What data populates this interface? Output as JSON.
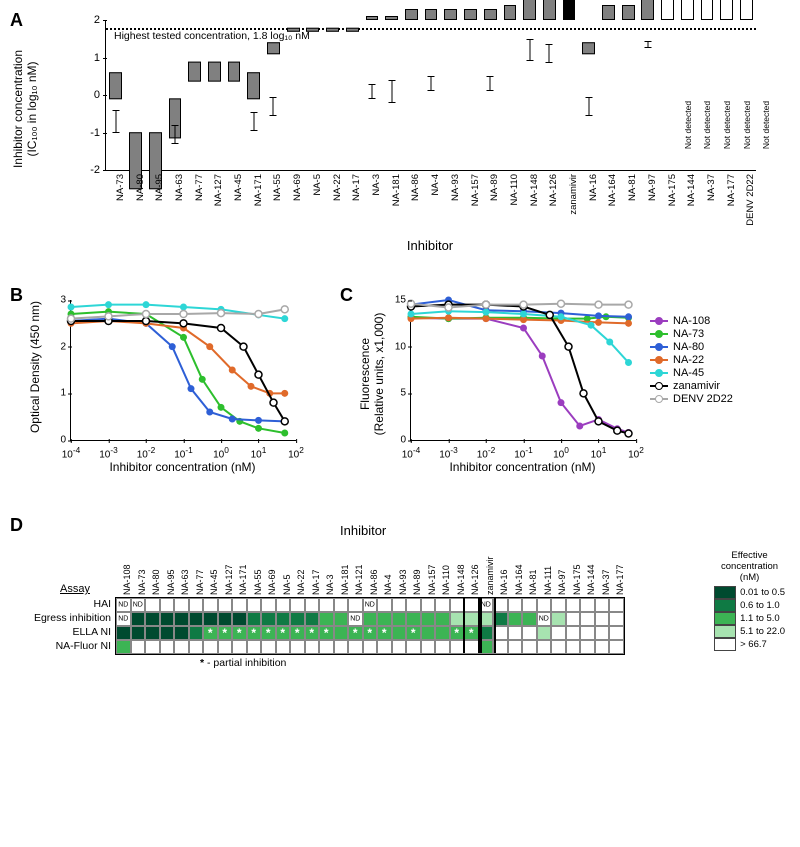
{
  "panelA": {
    "label": "A",
    "ylabel_line1": "Inhibitor concentration",
    "ylabel_line2": "(IC₁₀₀ in log₁₀ nM)",
    "xlabel": "Inhibitor",
    "annotation": "Highest tested concentration, 1.8 log₁₀ nM",
    "ylim": [
      -2,
      2
    ],
    "ytick_step": 1,
    "ht_line": 1.8,
    "not_detected_label": "Not detected",
    "bars": [
      {
        "name": "NA-73",
        "val": -0.7,
        "err": 0.3,
        "fill": "gray"
      },
      {
        "name": "NA-80",
        "val": -1.5,
        "err": 0,
        "fill": "gray"
      },
      {
        "name": "NA-95",
        "val": -1.5,
        "err": 0,
        "fill": "gray"
      },
      {
        "name": "NA-63",
        "val": -1.05,
        "err": 0.25,
        "fill": "gray"
      },
      {
        "name": "NA-77",
        "val": -0.55,
        "err": 0,
        "fill": "gray"
      },
      {
        "name": "NA-127",
        "val": -0.55,
        "err": 0,
        "fill": "gray"
      },
      {
        "name": "NA-45",
        "val": -0.55,
        "err": 0,
        "fill": "gray"
      },
      {
        "name": "NA-171",
        "val": -0.7,
        "err": 0.25,
        "fill": "gray"
      },
      {
        "name": "NA-55",
        "val": -0.3,
        "err": 0.25,
        "fill": "gray"
      },
      {
        "name": "NA-69",
        "val": -0.1,
        "err": 0,
        "fill": "gray"
      },
      {
        "name": "NA-5",
        "val": -0.1,
        "err": 0,
        "fill": "gray"
      },
      {
        "name": "NA-22",
        "val": -0.1,
        "err": 0,
        "fill": "gray"
      },
      {
        "name": "NA-17",
        "val": -0.1,
        "err": 0,
        "fill": "gray"
      },
      {
        "name": "NA-3",
        "val": 0.1,
        "err": 0.2,
        "fill": "gray"
      },
      {
        "name": "NA-181",
        "val": 0.1,
        "err": 0.3,
        "fill": "gray"
      },
      {
        "name": "NA-86",
        "val": 0.3,
        "err": 0,
        "fill": "gray"
      },
      {
        "name": "NA-4",
        "val": 0.3,
        "err": 0.2,
        "fill": "gray"
      },
      {
        "name": "NA-93",
        "val": 0.3,
        "err": 0,
        "fill": "gray"
      },
      {
        "name": "NA-157",
        "val": 0.3,
        "err": 0,
        "fill": "gray"
      },
      {
        "name": "NA-89",
        "val": 0.3,
        "err": 0.2,
        "fill": "gray"
      },
      {
        "name": "NA-110",
        "val": 0.4,
        "err": 0,
        "fill": "gray"
      },
      {
        "name": "NA-148",
        "val": 1.2,
        "err": 0.3,
        "fill": "gray"
      },
      {
        "name": "NA-126",
        "val": 1.1,
        "err": 0.25,
        "fill": "gray"
      },
      {
        "name": "zanamivir",
        "val": 0.85,
        "err": 0,
        "fill": "black"
      },
      {
        "name": "NA-16",
        "val": -0.3,
        "err": 0.25,
        "fill": "gray"
      },
      {
        "name": "NA-164",
        "val": 0.4,
        "err": 0,
        "fill": "gray"
      },
      {
        "name": "NA-81",
        "val": 0.4,
        "err": 0,
        "fill": "gray"
      },
      {
        "name": "NA-97",
        "val": 1.35,
        "err": 0.1,
        "fill": "gray"
      },
      {
        "name": "NA-175",
        "val": 1.8,
        "err": 0,
        "fill": "white",
        "nd": true
      },
      {
        "name": "NA-144",
        "val": 1.8,
        "err": 0,
        "fill": "white",
        "nd": true
      },
      {
        "name": "NA-37",
        "val": 1.8,
        "err": 0,
        "fill": "white",
        "nd": true
      },
      {
        "name": "NA-177",
        "val": 1.8,
        "err": 0,
        "fill": "white",
        "nd": true
      },
      {
        "name": "DENV 2D22",
        "val": 1.8,
        "err": 0,
        "fill": "white",
        "nd": true
      }
    ]
  },
  "panelB": {
    "label": "B",
    "ylabel": "Optical Density (450 nm)",
    "xlabel": "Inhibitor concentration (nM)",
    "ylim": [
      0,
      3
    ],
    "yticks": [
      0,
      1,
      2,
      3
    ],
    "xlim_log": [
      -4,
      2
    ],
    "xticks_log": [
      -4,
      -3,
      -2,
      -1,
      0,
      1,
      2
    ],
    "series": [
      {
        "name": "NA-73",
        "color": "#2dbf2d",
        "pts": [
          [
            -4,
            2.7
          ],
          [
            -3,
            2.75
          ],
          [
            -2,
            2.7
          ],
          [
            -1,
            2.2
          ],
          [
            -0.5,
            1.3
          ],
          [
            0,
            0.7
          ],
          [
            0.5,
            0.4
          ],
          [
            1,
            0.25
          ],
          [
            1.7,
            0.15
          ]
        ]
      },
      {
        "name": "NA-80",
        "color": "#2e5fd6",
        "pts": [
          [
            -4,
            2.55
          ],
          [
            -3,
            2.6
          ],
          [
            -2,
            2.5
          ],
          [
            -1.3,
            2.0
          ],
          [
            -0.8,
            1.1
          ],
          [
            -0.3,
            0.6
          ],
          [
            0.3,
            0.45
          ],
          [
            1,
            0.42
          ],
          [
            1.7,
            0.4
          ]
        ]
      },
      {
        "name": "NA-22",
        "color": "#e06a2a",
        "pts": [
          [
            -4,
            2.5
          ],
          [
            -3,
            2.55
          ],
          [
            -2,
            2.5
          ],
          [
            -1,
            2.4
          ],
          [
            -0.3,
            2.0
          ],
          [
            0.3,
            1.5
          ],
          [
            0.8,
            1.15
          ],
          [
            1.3,
            1.0
          ],
          [
            1.7,
            1.0
          ]
        ]
      },
      {
        "name": "NA-45",
        "color": "#2dd6d6",
        "pts": [
          [
            -4,
            2.85
          ],
          [
            -3,
            2.9
          ],
          [
            -2,
            2.9
          ],
          [
            -1,
            2.85
          ],
          [
            0,
            2.8
          ],
          [
            1,
            2.68
          ],
          [
            1.7,
            2.6
          ]
        ]
      },
      {
        "name": "zanamivir",
        "color": "#000000",
        "open": true,
        "pts": [
          [
            -4,
            2.55
          ],
          [
            -3,
            2.55
          ],
          [
            -2,
            2.55
          ],
          [
            -1,
            2.5
          ],
          [
            0,
            2.4
          ],
          [
            0.6,
            2.0
          ],
          [
            1,
            1.4
          ],
          [
            1.4,
            0.8
          ],
          [
            1.7,
            0.4
          ]
        ]
      },
      {
        "name": "DENV 2D22",
        "color": "#a8a8a8",
        "open": true,
        "pts": [
          [
            -4,
            2.6
          ],
          [
            -3,
            2.65
          ],
          [
            -2,
            2.7
          ],
          [
            -1,
            2.7
          ],
          [
            0,
            2.72
          ],
          [
            1,
            2.7
          ],
          [
            1.7,
            2.8
          ]
        ]
      }
    ]
  },
  "panelC": {
    "label": "C",
    "ylabel_line1": "Fluorescence",
    "ylabel_line2": "(Relative units, x1,000)",
    "xlabel": "Inhibitor concentration (nM)",
    "ylim": [
      0,
      15
    ],
    "yticks": [
      0,
      5,
      10,
      15
    ],
    "xlim_log": [
      -4,
      2
    ],
    "xticks_log": [
      -4,
      -3,
      -2,
      -1,
      0,
      1,
      2
    ],
    "series": [
      {
        "name": "NA-108",
        "color": "#9b3dbf",
        "pts": [
          [
            -4,
            13.1
          ],
          [
            -3,
            13
          ],
          [
            -2,
            13
          ],
          [
            -1,
            12
          ],
          [
            -0.5,
            9
          ],
          [
            0,
            4
          ],
          [
            0.5,
            1.5
          ],
          [
            1,
            2.2
          ],
          [
            1.5,
            1.2
          ],
          [
            1.8,
            0.8
          ]
        ]
      },
      {
        "name": "NA-73",
        "color": "#2dbf2d",
        "pts": [
          [
            -4,
            13.2
          ],
          [
            -3,
            13
          ],
          [
            -2,
            13.1
          ],
          [
            -1,
            13.1
          ],
          [
            0,
            13
          ],
          [
            0.7,
            13
          ],
          [
            1.2,
            13.2
          ],
          [
            1.8,
            13.1
          ]
        ]
      },
      {
        "name": "NA-80",
        "color": "#2e5fd6",
        "pts": [
          [
            -4,
            14.5
          ],
          [
            -3,
            15
          ],
          [
            -2,
            13.9
          ],
          [
            -1,
            13.8
          ],
          [
            0,
            13.6
          ],
          [
            1,
            13.3
          ],
          [
            1.8,
            13.2
          ]
        ]
      },
      {
        "name": "NA-22",
        "color": "#e06a2a",
        "pts": [
          [
            -4,
            13
          ],
          [
            -3,
            13.1
          ],
          [
            -2,
            13
          ],
          [
            -1,
            12.9
          ],
          [
            0,
            12.8
          ],
          [
            1,
            12.6
          ],
          [
            1.8,
            12.5
          ]
        ]
      },
      {
        "name": "NA-45",
        "color": "#2dd6d6",
        "pts": [
          [
            -4,
            13.5
          ],
          [
            -3,
            13.8
          ],
          [
            -2,
            13.7
          ],
          [
            -1,
            13.5
          ],
          [
            0,
            13.2
          ],
          [
            0.8,
            12.3
          ],
          [
            1.3,
            10.5
          ],
          [
            1.8,
            8.3
          ]
        ]
      },
      {
        "name": "zanamivir",
        "color": "#000000",
        "open": true,
        "pts": [
          [
            -4,
            14.3
          ],
          [
            -3,
            14.5
          ],
          [
            -2,
            14.5
          ],
          [
            -1,
            14.3
          ],
          [
            -0.3,
            13.4
          ],
          [
            0.2,
            10
          ],
          [
            0.6,
            5
          ],
          [
            1,
            2
          ],
          [
            1.5,
            1
          ],
          [
            1.8,
            0.7
          ]
        ]
      },
      {
        "name": "DENV 2D22",
        "color": "#a8a8a8",
        "open": true,
        "pts": [
          [
            -4,
            14.6
          ],
          [
            -3,
            14.2
          ],
          [
            -2,
            14.5
          ],
          [
            -1,
            14.5
          ],
          [
            0,
            14.6
          ],
          [
            1,
            14.5
          ],
          [
            1.8,
            14.5
          ]
        ]
      }
    ]
  },
  "legend": [
    {
      "name": "NA-108",
      "color": "#9b3dbf",
      "open": false
    },
    {
      "name": "NA-73",
      "color": "#2dbf2d",
      "open": false
    },
    {
      "name": "NA-80",
      "color": "#2e5fd6",
      "open": false
    },
    {
      "name": "NA-22",
      "color": "#e06a2a",
      "open": false
    },
    {
      "name": "NA-45",
      "color": "#2dd6d6",
      "open": false
    },
    {
      "name": "zanamivir",
      "color": "#000000",
      "open": true
    },
    {
      "name": "DENV 2D22",
      "color": "#a8a8a8",
      "open": true
    }
  ],
  "panelD": {
    "label": "D",
    "title": "Inhibitor",
    "assay_header": "Assay",
    "footnote": "- partial inhibition",
    "footnote_symbol": "*",
    "row_labels": [
      "HAI",
      "Egress inhibition",
      "ELLA NI",
      "NA-Fluor NI"
    ],
    "inhibitors": [
      "NA-108",
      "NA-73",
      "NA-80",
      "NA-95",
      "NA-63",
      "NA-77",
      "NA-45",
      "NA-127",
      "NA-171",
      "NA-55",
      "NA-69",
      "NA-5",
      "NA-22",
      "NA-17",
      "NA-3",
      "NA-181",
      "NA-121",
      "NA-86",
      "NA-4",
      "NA-93",
      "NA-89",
      "NA-157",
      "NA-110",
      "NA-148",
      "NA-126",
      "zanamivir",
      "NA-16",
      "NA-164",
      "NA-81",
      "NA-111",
      "NA-97",
      "NA-175",
      "NA-144",
      "NA-37",
      "NA-177"
    ],
    "group_sep_after": [
      24,
      25
    ],
    "legend_title": "Effective\nconcentration\n(nM)",
    "legend_items": [
      {
        "label": "0.01 to  0.5",
        "color": "#004a2f"
      },
      {
        "label": "0.6  to  1.0",
        "color": "#0f7a44"
      },
      {
        "label": "1.1  to  5.0",
        "color": "#3cb454"
      },
      {
        "label": "5.1  to 22.0",
        "color": "#a7e3b0"
      },
      {
        "label": "> 66.7",
        "color": "#ffffff"
      }
    ],
    "cells": {
      "HAI": [
        {
          "n": "NA-108",
          "nd": true
        },
        {
          "n": "NA-73",
          "nd": true
        },
        {
          "n": "NA-86",
          "nd": true
        },
        {
          "n": "zanamivir",
          "nd": true
        }
      ],
      "Egress inhibition": [
        {
          "n": "NA-108",
          "nd": true
        },
        {
          "n": "NA-73",
          "c": "#004a2f"
        },
        {
          "n": "NA-80",
          "c": "#004a2f"
        },
        {
          "n": "NA-95",
          "c": "#004a2f"
        },
        {
          "n": "NA-63",
          "c": "#004a2f"
        },
        {
          "n": "NA-77",
          "c": "#004a2f"
        },
        {
          "n": "NA-45",
          "c": "#004a2f"
        },
        {
          "n": "NA-127",
          "c": "#004a2f"
        },
        {
          "n": "NA-171",
          "c": "#004a2f"
        },
        {
          "n": "NA-55",
          "c": "#0f7a44"
        },
        {
          "n": "NA-69",
          "c": "#0f7a44"
        },
        {
          "n": "NA-5",
          "c": "#0f7a44"
        },
        {
          "n": "NA-22",
          "c": "#0f7a44"
        },
        {
          "n": "NA-17",
          "c": "#0f7a44"
        },
        {
          "n": "NA-3",
          "c": "#3cb454"
        },
        {
          "n": "NA-181",
          "c": "#3cb454"
        },
        {
          "n": "NA-121",
          "nd": true
        },
        {
          "n": "NA-86",
          "c": "#3cb454"
        },
        {
          "n": "NA-4",
          "c": "#3cb454"
        },
        {
          "n": "NA-93",
          "c": "#3cb454"
        },
        {
          "n": "NA-89",
          "c": "#3cb454"
        },
        {
          "n": "NA-157",
          "c": "#3cb454"
        },
        {
          "n": "NA-110",
          "c": "#3cb454"
        },
        {
          "n": "NA-148",
          "c": "#a7e3b0"
        },
        {
          "n": "NA-126",
          "c": "#a7e3b0"
        },
        {
          "n": "zanamivir",
          "c": "#a7e3b0"
        },
        {
          "n": "NA-16",
          "c": "#0f7a44"
        },
        {
          "n": "NA-164",
          "c": "#3cb454"
        },
        {
          "n": "NA-81",
          "c": "#3cb454"
        },
        {
          "n": "NA-111",
          "nd": true
        },
        {
          "n": "NA-97",
          "c": "#a7e3b0"
        }
      ],
      "ELLA NI": [
        {
          "n": "NA-108",
          "c": "#004a2f"
        },
        {
          "n": "NA-73",
          "c": "#004a2f"
        },
        {
          "n": "NA-80",
          "c": "#004a2f"
        },
        {
          "n": "NA-95",
          "c": "#004a2f"
        },
        {
          "n": "NA-63",
          "c": "#004a2f"
        },
        {
          "n": "NA-77",
          "c": "#0f7a44"
        },
        {
          "n": "NA-45",
          "c": "#3cb454",
          "star": true
        },
        {
          "n": "NA-127",
          "c": "#3cb454",
          "star": true
        },
        {
          "n": "NA-171",
          "c": "#3cb454",
          "star": true
        },
        {
          "n": "NA-55",
          "c": "#3cb454",
          "star": true
        },
        {
          "n": "NA-69",
          "c": "#3cb454",
          "star": true
        },
        {
          "n": "NA-5",
          "c": "#3cb454",
          "star": true
        },
        {
          "n": "NA-22",
          "c": "#3cb454",
          "star": true
        },
        {
          "n": "NA-17",
          "c": "#3cb454",
          "star": true
        },
        {
          "n": "NA-3",
          "c": "#3cb454",
          "star": true
        },
        {
          "n": "NA-181",
          "c": "#3cb454"
        },
        {
          "n": "NA-121",
          "c": "#3cb454",
          "star": true
        },
        {
          "n": "NA-86",
          "c": "#3cb454",
          "star": true
        },
        {
          "n": "NA-4",
          "c": "#3cb454",
          "star": true
        },
        {
          "n": "NA-93",
          "c": "#3cb454"
        },
        {
          "n": "NA-89",
          "c": "#3cb454",
          "star": true
        },
        {
          "n": "NA-157",
          "c": "#3cb454"
        },
        {
          "n": "NA-110",
          "c": "#3cb454"
        },
        {
          "n": "NA-148",
          "c": "#3cb454",
          "star": true
        },
        {
          "n": "NA-126",
          "c": "#3cb454",
          "star": true
        },
        {
          "n": "zanamivir",
          "c": "#0f7a44"
        },
        {
          "n": "NA-111",
          "c": "#a7e3b0"
        }
      ],
      "NA-Fluor NI": [
        {
          "n": "NA-108",
          "c": "#3cb454"
        },
        {
          "n": "zanamivir",
          "c": "#3cb454"
        }
      ]
    }
  }
}
